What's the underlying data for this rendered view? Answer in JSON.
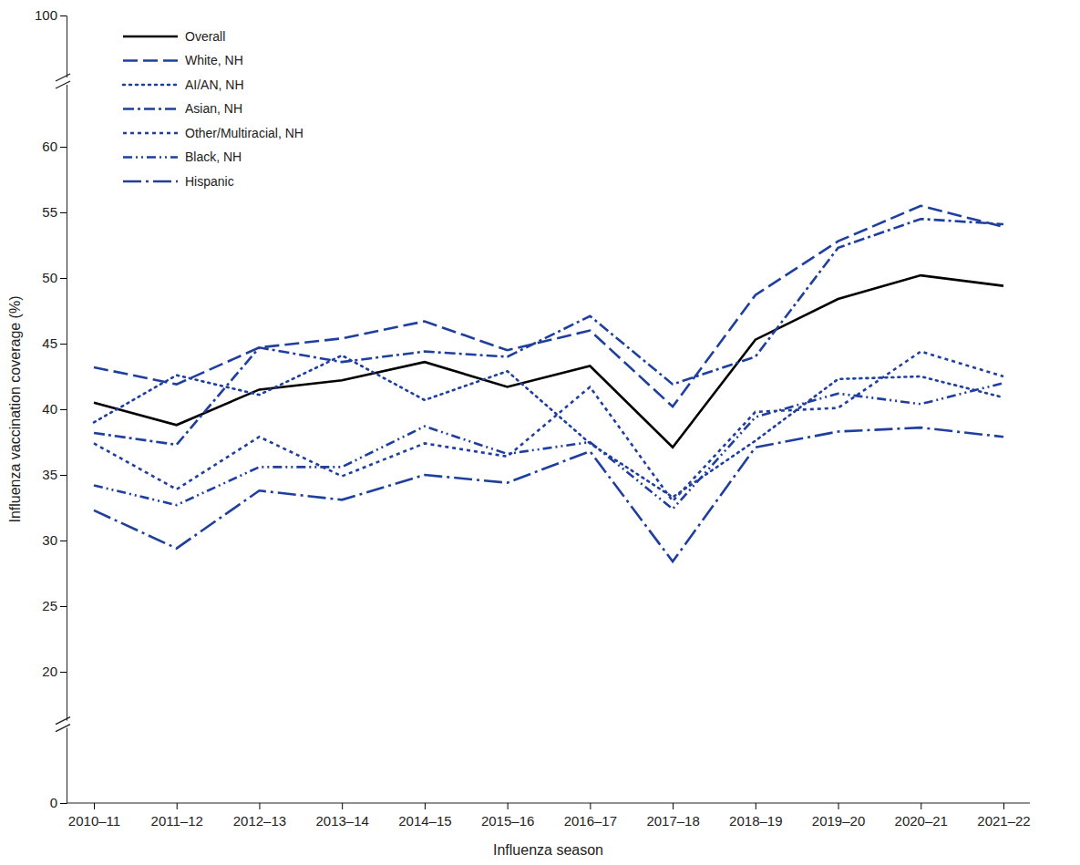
{
  "chart_data": {
    "type": "line",
    "x_label": "Influenza season",
    "y_label": "Influenza vaccination coverage (%)",
    "categories": [
      "2010–11",
      "2011–12",
      "2012–13",
      "2013–14",
      "2014–15",
      "2015–16",
      "2016–17",
      "2017–18",
      "2018–19",
      "2019–20",
      "2020–21",
      "2021–22"
    ],
    "ylim": [
      0,
      100
    ],
    "yticks": [
      0,
      20,
      25,
      30,
      35,
      40,
      45,
      50,
      55,
      60,
      100
    ],
    "grid": false,
    "legend": "top-left",
    "series": [
      {
        "name": "Overall",
        "color": "#000000",
        "line_style": "solid",
        "values": [
          40.5,
          38.8,
          41.5,
          42.2,
          43.6,
          41.7,
          43.3,
          37.1,
          45.3,
          48.4,
          50.2,
          49.4
        ]
      },
      {
        "name": "White, NH",
        "color": "#1f3f9f",
        "line_style": "dashed",
        "values": [
          43.2,
          41.9,
          44.7,
          45.4,
          46.7,
          44.5,
          46.0,
          40.2,
          48.7,
          52.8,
          55.5,
          53.9
        ]
      },
      {
        "name": "AI/AN, NH",
        "color": "#1f3f9f",
        "line_style": "dotted",
        "values": [
          39.0,
          42.6,
          41.1,
          44.1,
          40.7,
          42.9,
          37.4,
          33.3,
          37.6,
          42.3,
          42.5,
          40.9
        ]
      },
      {
        "name": "Asian, NH",
        "color": "#1f3f9f",
        "line_style": "dashdot",
        "values": [
          38.2,
          37.3,
          44.7,
          43.6,
          44.4,
          44.0,
          47.1,
          41.9,
          44.0,
          52.3,
          54.5,
          54.1
        ]
      },
      {
        "name": "Other/Multiracial, NH",
        "color": "#1f3f9f",
        "line_style": "shortdash",
        "values": [
          37.4,
          33.9,
          37.9,
          34.9,
          37.4,
          36.4,
          41.7,
          33.0,
          39.8,
          40.1,
          44.4,
          42.5
        ]
      },
      {
        "name": "Black, NH",
        "color": "#1f3f9f",
        "line_style": "dashdotdot",
        "values": [
          34.2,
          32.7,
          35.6,
          35.6,
          38.7,
          36.6,
          37.5,
          32.4,
          39.4,
          41.2,
          40.4,
          42.0
        ]
      },
      {
        "name": "Hispanic",
        "color": "#1f3f9f",
        "line_style": "longdashdot",
        "values": [
          32.3,
          29.4,
          33.8,
          33.1,
          35.0,
          34.4,
          36.8,
          28.4,
          37.1,
          38.3,
          38.6,
          37.9
        ]
      }
    ]
  }
}
